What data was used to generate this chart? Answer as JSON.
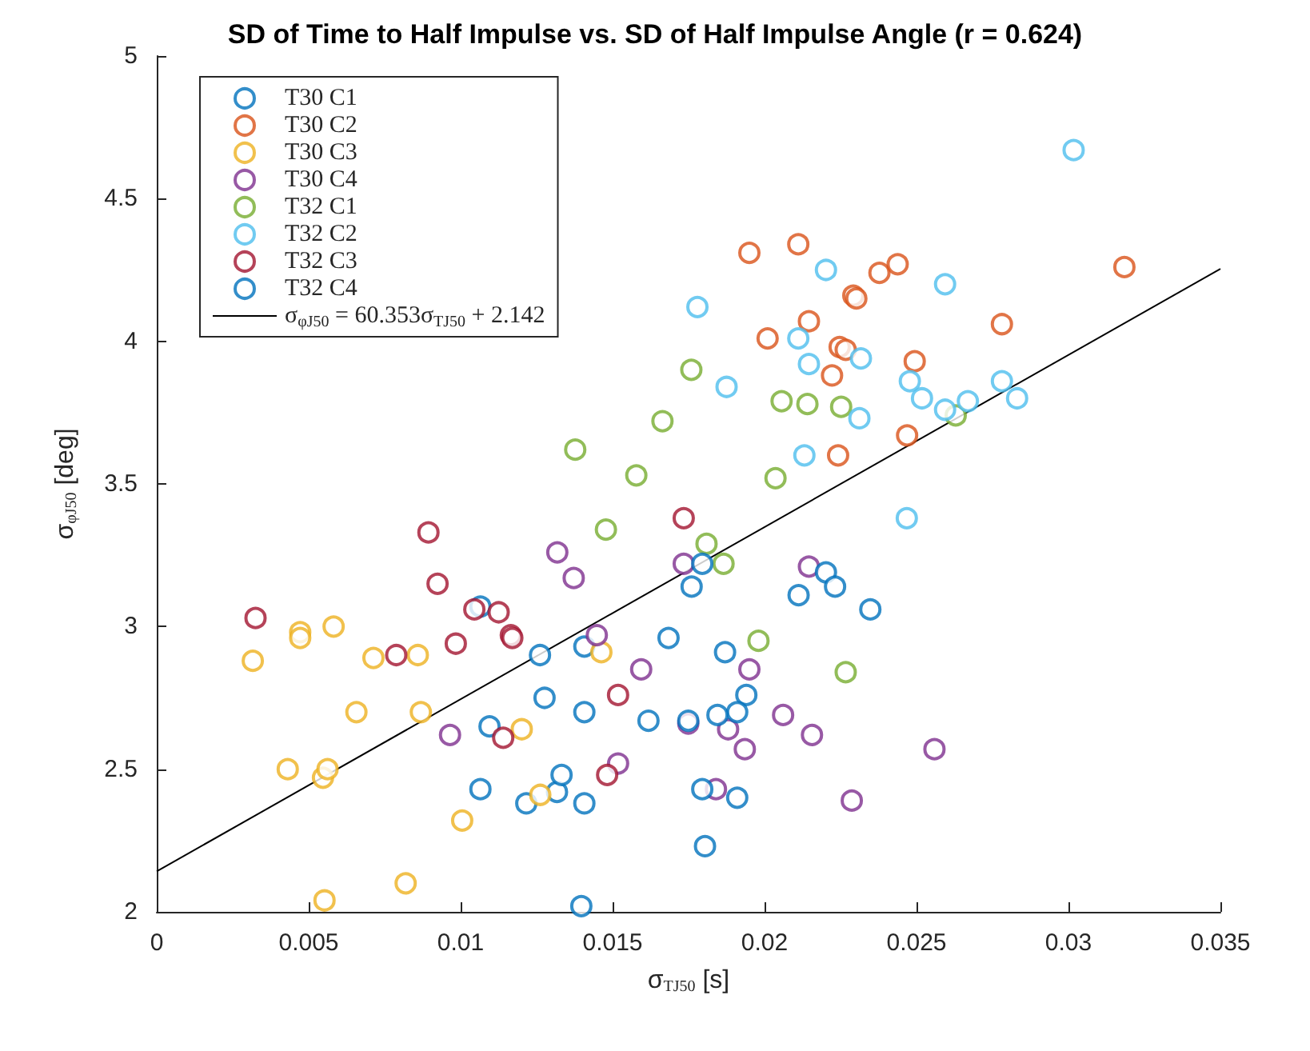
{
  "chart_data": {
    "type": "scatter",
    "title": "SD of Time to Half Impulse vs. SD of Half Impulse Angle (r = 0.624)",
    "xlabel": "σ$_{TJ50}$ [s]",
    "ylabel": "σ$_{φJ50}$ [deg]",
    "xlim": [
      0,
      0.035
    ],
    "xticks": [
      0,
      0.005,
      0.01,
      0.015,
      0.02,
      0.025,
      0.03,
      0.035
    ],
    "ylim": [
      2,
      5
    ],
    "yticks": [
      2,
      2.5,
      3,
      3.5,
      4,
      4.5,
      5
    ],
    "grid": false,
    "legend": "top left",
    "marker": "circle",
    "series": [
      {
        "name": "T30 C1",
        "color": "#0072bd",
        "x": [
          0.01065,
          0.01261,
          0.01407,
          0.01276,
          0.01407,
          0.01618,
          0.01095,
          0.01684,
          0.01065,
          0.01216,
          0.01317,
          0.01332,
          0.01407,
          0.01397
        ],
        "values": [
          3.07,
          2.9,
          2.93,
          2.75,
          2.7,
          2.67,
          2.65,
          2.96,
          2.43,
          2.38,
          2.42,
          2.48,
          2.38,
          2.02
        ]
      },
      {
        "name": "T30 C2",
        "color": "#d95319",
        "x": [
          0.0195,
          0.02111,
          0.02378,
          0.02438,
          0.02292,
          0.02302,
          0.02146,
          0.0201,
          0.02247,
          0.02267,
          0.02222,
          0.02494,
          0.02781,
          0.03184,
          0.02469,
          0.02242
        ],
        "values": [
          4.31,
          4.34,
          4.24,
          4.27,
          4.16,
          4.15,
          4.07,
          4.01,
          3.98,
          3.97,
          3.88,
          3.93,
          4.06,
          4.26,
          3.67,
          3.6
        ]
      },
      {
        "name": "T30 C3",
        "color": "#edb120",
        "x": [
          0.00316,
          0.00472,
          0.00472,
          0.00582,
          0.00713,
          0.00859,
          0.00657,
          0.00869,
          0.00431,
          0.00547,
          0.00562,
          0.01201,
          0.01463,
          0.01262,
          0.01005,
          0.00819,
          0.00552
        ],
        "values": [
          2.88,
          2.98,
          2.96,
          3.0,
          2.89,
          2.9,
          2.7,
          2.7,
          2.5,
          2.47,
          2.5,
          2.64,
          2.91,
          2.41,
          2.32,
          2.1,
          2.04
        ]
      },
      {
        "name": "T30 C4",
        "color": "#7e2f8e",
        "x": [
          0.01318,
          0.01372,
          0.01448,
          0.01594,
          0.00965,
          0.01518,
          0.01734,
          0.01749,
          0.0195,
          0.0188,
          0.02061,
          0.01935,
          0.02156,
          0.02146,
          0.0184,
          0.02287,
          0.02559
        ],
        "values": [
          3.26,
          3.17,
          2.97,
          2.85,
          2.62,
          2.52,
          3.22,
          2.66,
          2.85,
          2.64,
          2.69,
          2.57,
          2.62,
          3.21,
          2.43,
          2.39,
          2.57
        ]
      },
      {
        "name": "T32 C1",
        "color": "#77ac30",
        "x": [
          0.01664,
          0.01377,
          0.01578,
          0.01478,
          0.01759,
          0.02056,
          0.02141,
          0.02252,
          0.02036,
          0.01809,
          0.01865,
          0.0198,
          0.02267,
          0.02629
        ],
        "values": [
          3.72,
          3.62,
          3.53,
          3.34,
          3.9,
          3.79,
          3.78,
          3.77,
          3.52,
          3.29,
          3.22,
          2.95,
          2.84,
          3.74
        ]
      },
      {
        "name": "T32 C2",
        "color": "#4dbeee",
        "x": [
          0.03017,
          0.01779,
          0.02202,
          0.02594,
          0.02111,
          0.02146,
          0.02317,
          0.01875,
          0.02312,
          0.02131,
          0.02478,
          0.02518,
          0.02594,
          0.02669,
          0.02781,
          0.02831,
          0.02468
        ],
        "values": [
          4.67,
          4.12,
          4.25,
          4.2,
          4.01,
          3.92,
          3.94,
          3.84,
          3.73,
          3.6,
          3.86,
          3.8,
          3.76,
          3.79,
          3.86,
          3.8,
          3.38
        ]
      },
      {
        "name": "T32 C3",
        "color": "#a2142f",
        "x": [
          0.00325,
          0.00894,
          0.00924,
          0.01045,
          0.01125,
          0.01165,
          0.0117,
          0.00788,
          0.00984,
          0.0114,
          0.01518,
          0.01482,
          0.01734
        ],
        "values": [
          3.03,
          3.33,
          3.15,
          3.06,
          3.05,
          2.97,
          2.96,
          2.9,
          2.94,
          2.61,
          2.76,
          2.48,
          3.38
        ]
      },
      {
        "name": "T32 C4",
        "color": "#0072bd",
        "x": [
          0.0176,
          0.01795,
          0.0187,
          0.0194,
          0.0191,
          0.01845,
          0.01749,
          0.02112,
          0.02202,
          0.02232,
          0.02348,
          0.01795,
          0.0191,
          0.01804
        ],
        "values": [
          3.14,
          3.22,
          2.91,
          2.76,
          2.7,
          2.69,
          2.67,
          3.11,
          3.19,
          3.14,
          3.06,
          2.43,
          2.4,
          2.23
        ]
      },
      {
        "name": "σ$_{φJ50}$ = 60.353σ$_{TJ50}$ + 2.142",
        "type": "line",
        "marker": "none",
        "color": "#000000",
        "x": [
          0,
          0.035
        ],
        "values": [
          2.142,
          4.254
        ]
      }
    ]
  }
}
